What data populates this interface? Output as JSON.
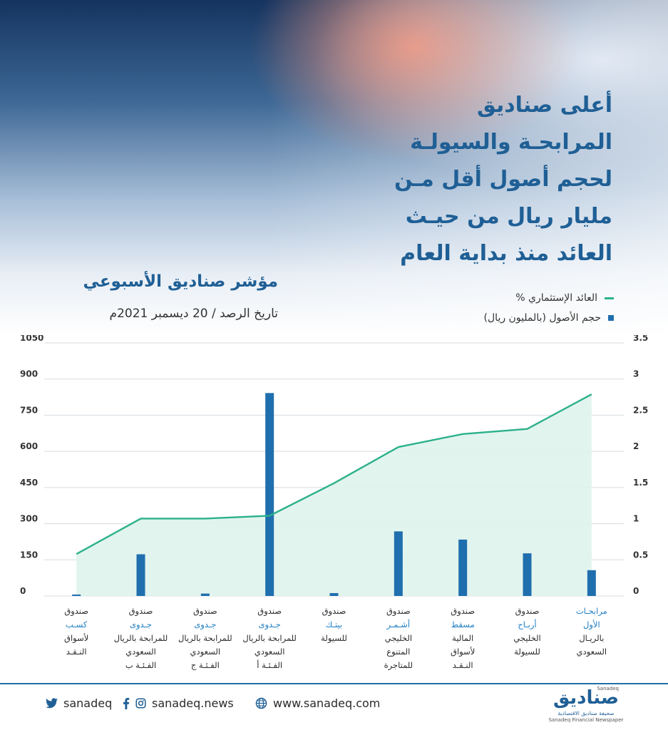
{
  "headline_lines": [
    "أعلى صناديق",
    "المرابحـة والسيولـة",
    "لحجم أصول أقل مـن",
    "مليار ريال من حيـث",
    "العائد منذ بداية العام"
  ],
  "subtitle": "مؤشر صناديق الأسبوعي",
  "date_line": "تاريخ الرصد / 20 ديسمبر 2021م",
  "colors": {
    "line": "#2bb18a",
    "area": "#dff3ec",
    "bar": "#1f6fae",
    "accent_text": "#1f7ec2",
    "brand": "#1f5f95"
  },
  "chart_data": {
    "type": "bar",
    "title": "",
    "grid": true,
    "legend_position": "top-right",
    "categories": [
      {
        "lines": [
          "صندوق",
          "كسـب",
          "لأسواق",
          "النـقـد"
        ],
        "accent": [
          1
        ]
      },
      {
        "lines": [
          "صندوق",
          "جـدوى",
          "للمرابحة بالريال",
          "السعودي",
          "الفـئـة ب"
        ],
        "accent": [
          1
        ]
      },
      {
        "lines": [
          "صندوق",
          "جـدوى",
          "للمرابحة بالريال",
          "السعودي",
          "الفـئـة ج"
        ],
        "accent": [
          1
        ]
      },
      {
        "lines": [
          "صندوق",
          "جـدوى",
          "للمرابحة بالريال",
          "السعودي",
          "الفـئـة أ"
        ],
        "accent": [
          1
        ]
      },
      {
        "lines": [
          "صندوق",
          "بيتـك",
          "للسيولة"
        ],
        "accent": [
          1
        ]
      },
      {
        "lines": [
          "صندوق",
          "أشـمـر",
          "الخليجي",
          "المتنوع",
          "للمتاجرة"
        ],
        "accent": [
          1
        ]
      },
      {
        "lines": [
          "صندوق",
          "مسقط",
          "المالية",
          "لأسواق",
          "النـقـد"
        ],
        "accent": [
          1
        ]
      },
      {
        "lines": [
          "صندوق",
          "أربـاح",
          "الخليجي",
          "للسيولة"
        ],
        "accent": [
          1
        ]
      },
      {
        "lines": [
          "مرابحـات",
          "الأول",
          "بالريـال",
          "السعودي"
        ],
        "accent": [
          0,
          1
        ]
      }
    ],
    "series": [
      {
        "name": "حجم الأصول (بالمليون ريال)",
        "type": "bar",
        "axis": "left",
        "values": [
          6,
          173,
          10,
          842,
          12,
          268,
          234,
          177,
          107
        ]
      },
      {
        "name": "العائد الإستثماري %",
        "type": "line",
        "axis": "right",
        "values": [
          0.58,
          1.07,
          1.07,
          1.11,
          1.56,
          2.06,
          2.24,
          2.31,
          2.79
        ]
      }
    ],
    "y_left": {
      "range": [
        0,
        1050
      ],
      "ticks": [
        "0",
        "150",
        "300",
        "450",
        "600",
        "750",
        "900",
        "1050"
      ]
    },
    "y_right": {
      "range": [
        0,
        3.5
      ],
      "ticks": [
        "0",
        "0.5",
        "1",
        "1.5",
        "2",
        "2.5",
        "3",
        "3.5"
      ]
    }
  },
  "footer": {
    "twitter": "sanadeq",
    "social": "sanadeq.news",
    "website": "www.sanadeq.com",
    "brand_ar": "صناديق",
    "brand_latin": "Sanadeq",
    "tagline_ar": "صحيفة صناديق الاقتصادية",
    "tagline_en": "Sanadeq Financial Newspaper"
  }
}
